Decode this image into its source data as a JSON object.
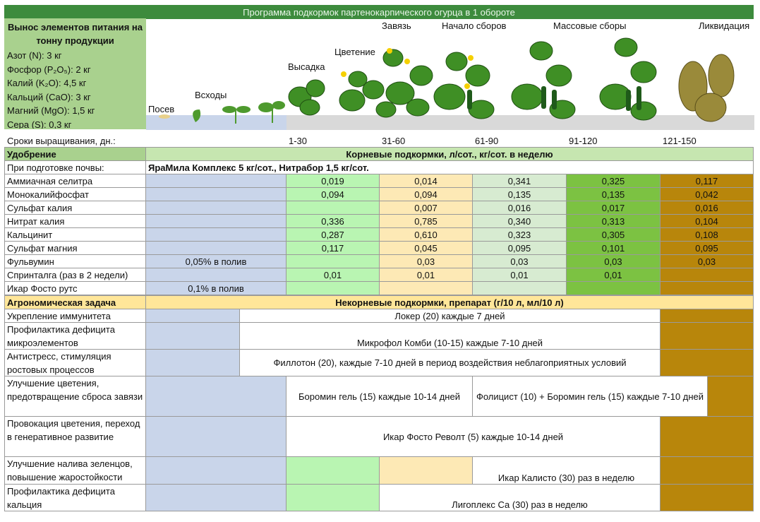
{
  "title": "Программа подкормок партенокарпического огурца в 1 обороте",
  "nutrient_box": {
    "heading": "Вынос элементов питания на тонну продукции",
    "items": [
      "Азот (N): 3 кг",
      "Фосфор (P₂O₅): 2 кг",
      "Калий (K₂O): 4,5 кг",
      "Кальций (CaO): 3 кг",
      "Магний (MgO): 1,5 кг",
      "Сера (S): 0,3 кг"
    ]
  },
  "stages": [
    "Посев",
    "Всходы",
    "Высадка",
    "Цветение",
    "Завязь",
    "Начало сборов",
    "Массовые сборы",
    "Ликвидация"
  ],
  "terms": {
    "label": "Сроки выращивания, дн.:",
    "periods": [
      "1-30",
      "31-60",
      "61-90",
      "91-120",
      "121-150"
    ]
  },
  "root_section": {
    "label": "Удобрение",
    "header": "Корневые подкормки, л/сот., кг/сот. в неделю"
  },
  "soil_prep": {
    "label": "При подготовке почвы:",
    "text": "ЯраМила Комплекс 5 кг/сот., Нитрабор 1,5 кг/сот."
  },
  "root_rows": [
    {
      "name": "Аммиачная селитра",
      "cells": [
        null,
        "0,019",
        "0,014",
        "0,341",
        "0,325",
        "0,117"
      ]
    },
    {
      "name": "Монокалийфосфат",
      "cells": [
        null,
        "0,094",
        "0,094",
        "0,135",
        "0,135",
        "0,042"
      ]
    },
    {
      "name": "Сульфат калия",
      "cells": [
        null,
        null,
        "0,007",
        "0,016",
        "0,017",
        "0,016"
      ]
    },
    {
      "name": "Нитрат калия",
      "cells": [
        null,
        "0,336",
        "0,785",
        "0,340",
        "0,313",
        "0,104"
      ]
    },
    {
      "name": "Кальцинит",
      "cells": [
        null,
        "0,287",
        "0,610",
        "0,323",
        "0,305",
        "0,108"
      ]
    },
    {
      "name": "Сульфат магния",
      "cells": [
        null,
        "0,117",
        "0,045",
        "0,095",
        "0,101",
        "0,095"
      ]
    },
    {
      "name": "Фульвумин",
      "cells": [
        "0,05% в полив",
        null,
        "0,03",
        "0,03",
        "0,03",
        "0,03"
      ]
    },
    {
      "name": "Спринталга (раз в 2 недели)",
      "cells": [
        null,
        "0,01",
        "0,01",
        "0,01",
        "0,01",
        null
      ]
    },
    {
      "name": "Икар Фосто рутс",
      "cells": [
        "0,1% в полив",
        null,
        null,
        null,
        null,
        null
      ]
    }
  ],
  "foliar_section": {
    "label": "Агрономическая задача",
    "header": "Некорневые подкормки, препарат (г/10 л, мл/10 л)"
  },
  "foliar_rows": [
    {
      "task": "Укрепление иммунитета",
      "products": [
        "Локер (20) каждые 7 дней"
      ]
    },
    {
      "task": "Профилактика дефицита микроэлементов",
      "products": [
        "Микрофол Комби (10-15) каждые 7-10 дней"
      ]
    },
    {
      "task": "Антистресс, стимуляция ростовых процессов",
      "products": [
        "Филлотон (20), каждые 7-10 дней в период воздействия неблагоприятных условий"
      ]
    },
    {
      "task": "Улучшение цветения, предотвращение сброса завязи",
      "products": [
        "Боромин гель (15) каждые 10-14 дней",
        "Фолицист (10) + Боромин гель (15) каждые 7-10 дней"
      ]
    },
    {
      "task": "Провокация цветения, переход в генеративное развитие",
      "products": [
        "Икар Фосто Револт (5) каждые 10-14 дней"
      ]
    },
    {
      "task": "Улучшение налива зеленцов, повышение жаростойкости",
      "products": [
        "Икар Калисто (30) раз в неделю"
      ]
    },
    {
      "task": "Профилактика дефицита кальция",
      "products": [
        "Лигоплекс Са (30) раз в неделю"
      ]
    }
  ]
}
